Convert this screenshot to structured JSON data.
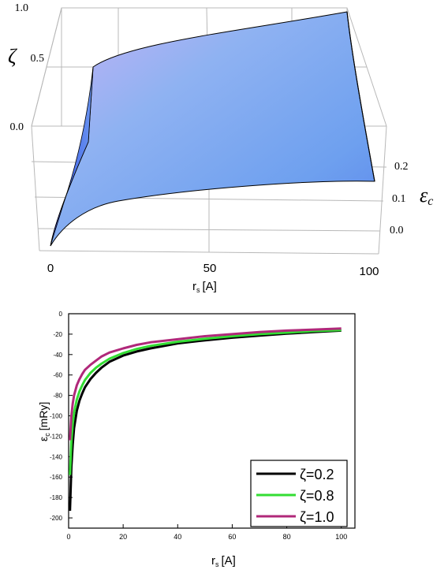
{
  "chart_data": [
    {
      "type": "surface",
      "xlabel_main": "r",
      "xlabel_sub": "s",
      "xlabel_unit": "[A]",
      "ylabel": "ζ",
      "zlabel_main": "ε",
      "zlabel_sub": "c",
      "x_ticks": [
        "0",
        "50",
        "100"
      ],
      "zeta_ticks": [
        "0.0",
        "0.5",
        "1.0"
      ],
      "eps_ticks": [
        "0.0",
        "0.1",
        "0.2"
      ],
      "xlim": [
        0,
        100
      ],
      "zeta_lim": [
        0,
        1
      ],
      "surface_color": "#7a9cf5",
      "grid": true
    },
    {
      "type": "line",
      "xlabel_main": "r",
      "xlabel_sub": "s",
      "xlabel_unit": "[A]",
      "ylabel_main": "ε",
      "ylabel_sub": "c",
      "ylabel_unit": "[mRy]",
      "xlim": [
        0,
        105
      ],
      "ylim": [
        -210,
        0
      ],
      "x_ticks": [
        0,
        20,
        40,
        60,
        80,
        100
      ],
      "y_ticks": [
        0,
        -20,
        -40,
        -60,
        -80,
        -100,
        -120,
        -140,
        -160,
        -180,
        -200
      ],
      "legend_position": "bottom-right",
      "series": [
        {
          "name": "ζ=0.2",
          "color": "#000000",
          "x": [
            0.5,
            1,
            1.5,
            2,
            3,
            4,
            5,
            6,
            8,
            10,
            12,
            15,
            20,
            25,
            30,
            40,
            50,
            60,
            70,
            80,
            90,
            100
          ],
          "y": [
            -193,
            -150,
            -128,
            -112,
            -95,
            -85,
            -78,
            -72,
            -64,
            -58,
            -53,
            -47,
            -41,
            -37,
            -34,
            -29,
            -26,
            -23.5,
            -21.5,
            -19.5,
            -18,
            -16.5
          ]
        },
        {
          "name": "ζ=0.8",
          "color": "#33dd33",
          "x": [
            0.5,
            1,
            1.5,
            2,
            3,
            4,
            5,
            6,
            8,
            10,
            12,
            15,
            20,
            25,
            30,
            40,
            50,
            60,
            70,
            80,
            90,
            100
          ],
          "y": [
            -158,
            -125,
            -108,
            -97,
            -84,
            -76,
            -70,
            -65,
            -58,
            -53,
            -49,
            -44,
            -38.5,
            -34.5,
            -31.5,
            -27.5,
            -24.5,
            -22,
            -20,
            -18.5,
            -17,
            -16
          ]
        },
        {
          "name": "ζ=1.0",
          "color": "#b0287a",
          "x": [
            0.5,
            1,
            1.5,
            2,
            3,
            4,
            5,
            6,
            8,
            10,
            12,
            15,
            20,
            25,
            30,
            40,
            50,
            60,
            70,
            80,
            90,
            100
          ],
          "y": [
            -124,
            -100,
            -88,
            -80,
            -70,
            -64,
            -59,
            -55,
            -50,
            -46,
            -42,
            -38,
            -34,
            -30.5,
            -28,
            -25,
            -22,
            -20,
            -18,
            -16.5,
            -15.5,
            -14.5
          ]
        }
      ]
    }
  ]
}
